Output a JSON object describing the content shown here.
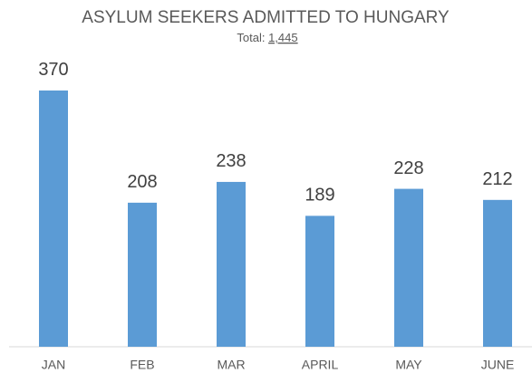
{
  "chart_data": {
    "type": "bar",
    "title": "ASYLUM SEEKERS ADMITTED TO HUNGARY",
    "subtitle": "Total:",
    "total": {
      "value": 1445,
      "label": "1,445"
    },
    "categories": [
      "JAN",
      "FEB",
      "MAR",
      "APRIL",
      "MAY",
      "JUNE"
    ],
    "values": [
      370,
      208,
      238,
      189,
      228,
      212
    ],
    "color": "#5b9bd5",
    "ylim": [
      0,
      400
    ],
    "grid": false
  }
}
